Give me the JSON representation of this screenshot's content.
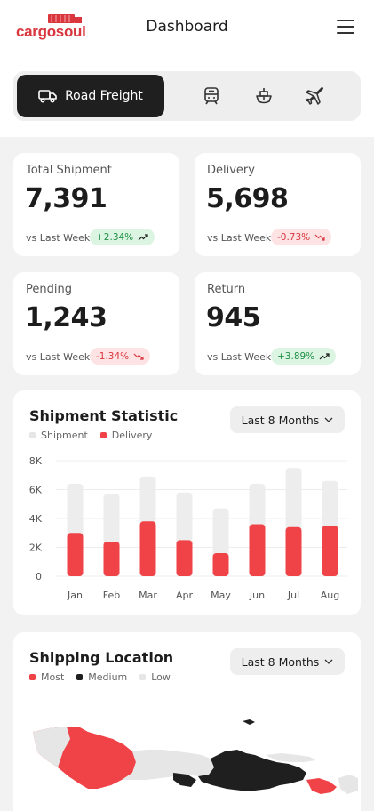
{
  "header": {
    "logo_text": "cargosoul",
    "title": "Dashboard"
  },
  "modes": {
    "active_label": "Road Freight",
    "items": [
      "truck-icon",
      "train-icon",
      "ship-icon",
      "plane-icon"
    ]
  },
  "stats": [
    {
      "label": "Total Shipment",
      "value": "7,391",
      "compare": "vs Last Week",
      "change": "+2.34%",
      "trend": "up"
    },
    {
      "label": "Delivery",
      "value": "5,698",
      "compare": "vs Last Week",
      "change": "-0.73%",
      "trend": "down"
    },
    {
      "label": "Pending",
      "value": "1,243",
      "compare": "vs Last Week",
      "change": "-1.34%",
      "trend": "down"
    },
    {
      "label": "Return",
      "value": "945",
      "compare": "vs Last Week",
      "change": "+3.89%",
      "trend": "up"
    }
  ],
  "colors": {
    "accent": "#ef4347",
    "dark": "#1f1f1f",
    "light_bar": "#ededed",
    "up": "#1f8f44",
    "down": "#d9363e"
  },
  "shipment_statistic": {
    "title": "Shipment Statistic",
    "period": "Last 8 Months",
    "legend": [
      "Shipment",
      "Delivery"
    ]
  },
  "chart_data": {
    "type": "bar",
    "categories": [
      "Jan",
      "Feb",
      "Mar",
      "Apr",
      "May",
      "Jun",
      "Jul",
      "Aug"
    ],
    "series": [
      {
        "name": "Shipment",
        "values": [
          6400,
          5700,
          6900,
          5800,
          4700,
          6400,
          7500,
          6600
        ]
      },
      {
        "name": "Delivery",
        "values": [
          3000,
          2400,
          3800,
          2500,
          1600,
          3600,
          3400,
          3500
        ]
      }
    ],
    "yticks": [
      "0",
      "2K",
      "4K",
      "6K",
      "8K"
    ],
    "ylim": [
      0,
      8000
    ],
    "grid": true,
    "legend_position": "top-left"
  },
  "shipping_location": {
    "title": "Shipping Location",
    "period": "Last 8 Months",
    "legend": [
      "Most",
      "Medium",
      "Low"
    ]
  }
}
